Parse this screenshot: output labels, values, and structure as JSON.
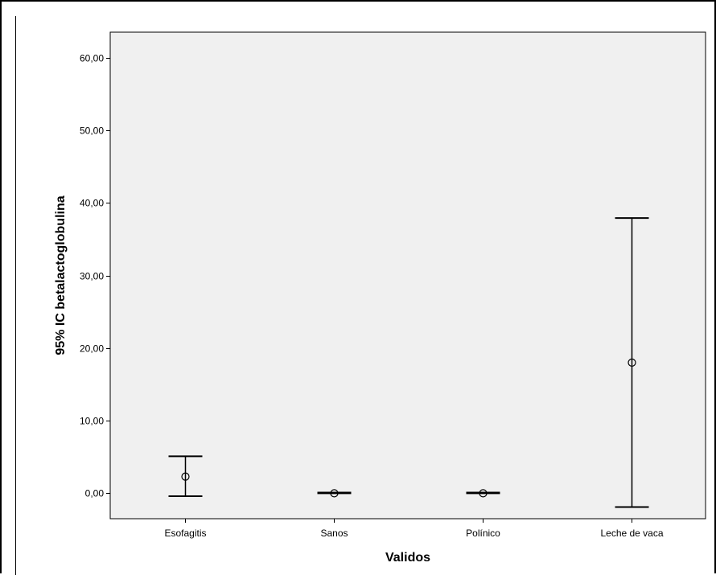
{
  "chart_data": {
    "type": "errorbar",
    "xlabel": "Validos",
    "ylabel": "95% IC betalactoglobulina",
    "ylim": [
      -3.5,
      63.5
    ],
    "yticks": [
      0,
      10,
      20,
      30,
      40,
      50,
      60
    ],
    "ytick_labels": [
      "0,00",
      "10,00",
      "20,00",
      "30,00",
      "40,00",
      "50,00",
      "60,00"
    ],
    "categories": [
      "Esofagitis",
      "Sanos",
      "Polínico",
      "Leche de vaca"
    ],
    "series": [
      {
        "mean": [
          2.3,
          0.0,
          0.0,
          18.0
        ],
        "lower": [
          -0.4,
          0.0,
          0.0,
          -1.9
        ],
        "upper": [
          5.1,
          0.1,
          0.1,
          37.9
        ]
      }
    ],
    "grid": false,
    "colors": {
      "plot_background": "#f0f0f0",
      "marks": "#000000"
    }
  }
}
